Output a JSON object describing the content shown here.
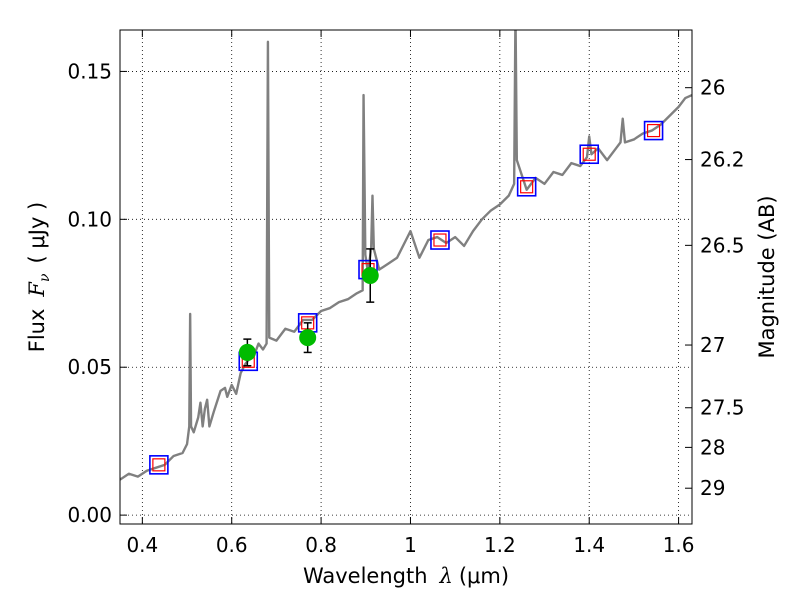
{
  "chart_data": {
    "type": "line",
    "xlabel": {
      "prefix": "Wavelength",
      "symbol": "λ",
      "unit": "(μm)"
    },
    "ylabel": {
      "prefix": "Flux",
      "symbol": "F",
      "subscript": "ν",
      "unit": "( μJy )"
    },
    "y2label": "Magnitude (AB)",
    "xlim": [
      0.35,
      1.63
    ],
    "ylim": [
      -0.003,
      0.164
    ],
    "grid": true,
    "x_ticks": [
      {
        "value": 0.4,
        "label": "0.4"
      },
      {
        "value": 0.6,
        "label": "0.6"
      },
      {
        "value": 0.8,
        "label": "0.8"
      },
      {
        "value": 1.0,
        "label": "1"
      },
      {
        "value": 1.2,
        "label": "1.2"
      },
      {
        "value": 1.4,
        "label": "1.4"
      },
      {
        "value": 1.6,
        "label": "1.6"
      }
    ],
    "y_ticks": [
      {
        "value": 0.0,
        "label": "0.00"
      },
      {
        "value": 0.05,
        "label": "0.05"
      },
      {
        "value": 0.1,
        "label": "0.10"
      },
      {
        "value": 0.15,
        "label": "0.15"
      }
    ],
    "y2_ticks": [
      {
        "flux": 0.1445,
        "label": "26"
      },
      {
        "flux": 0.1202,
        "label": "26.2"
      },
      {
        "flux": 0.0912,
        "label": "26.5"
      },
      {
        "flux": 0.0575,
        "label": "27"
      },
      {
        "flux": 0.0363,
        "label": "27.5"
      },
      {
        "flux": 0.0229,
        "label": "28"
      },
      {
        "flux": 0.0091,
        "label": "29"
      }
    ],
    "series": [
      {
        "style": "gray-line",
        "color": "#808080",
        "points": [
          [
            0.35,
            0.012
          ],
          [
            0.37,
            0.014
          ],
          [
            0.39,
            0.013
          ],
          [
            0.41,
            0.015
          ],
          [
            0.43,
            0.016
          ],
          [
            0.45,
            0.017
          ],
          [
            0.47,
            0.02
          ],
          [
            0.49,
            0.021
          ],
          [
            0.5,
            0.024
          ],
          [
            0.505,
            0.03
          ],
          [
            0.507,
            0.068
          ],
          [
            0.509,
            0.03
          ],
          [
            0.515,
            0.028
          ],
          [
            0.525,
            0.033
          ],
          [
            0.53,
            0.038
          ],
          [
            0.535,
            0.03
          ],
          [
            0.54,
            0.036
          ],
          [
            0.545,
            0.039
          ],
          [
            0.55,
            0.03
          ],
          [
            0.56,
            0.035
          ],
          [
            0.575,
            0.042
          ],
          [
            0.585,
            0.043
          ],
          [
            0.59,
            0.04
          ],
          [
            0.6,
            0.044
          ],
          [
            0.61,
            0.041
          ],
          [
            0.62,
            0.048
          ],
          [
            0.63,
            0.051
          ],
          [
            0.64,
            0.053
          ],
          [
            0.65,
            0.054
          ],
          [
            0.66,
            0.058
          ],
          [
            0.67,
            0.056
          ],
          [
            0.678,
            0.058
          ],
          [
            0.681,
            0.16
          ],
          [
            0.684,
            0.06
          ],
          [
            0.7,
            0.059
          ],
          [
            0.72,
            0.063
          ],
          [
            0.74,
            0.062
          ],
          [
            0.76,
            0.066
          ],
          [
            0.78,
            0.066
          ],
          [
            0.8,
            0.069
          ],
          [
            0.82,
            0.07
          ],
          [
            0.84,
            0.072
          ],
          [
            0.86,
            0.073
          ],
          [
            0.88,
            0.075
          ],
          [
            0.893,
            0.076
          ],
          [
            0.895,
            0.142
          ],
          [
            0.899,
            0.088
          ],
          [
            0.905,
            0.082
          ],
          [
            0.912,
            0.09
          ],
          [
            0.915,
            0.108
          ],
          [
            0.918,
            0.09
          ],
          [
            0.93,
            0.083
          ],
          [
            0.95,
            0.085
          ],
          [
            0.97,
            0.087
          ],
          [
            0.99,
            0.093
          ],
          [
            1.0,
            0.096
          ],
          [
            1.02,
            0.087
          ],
          [
            1.04,
            0.093
          ],
          [
            1.06,
            0.094
          ],
          [
            1.08,
            0.092
          ],
          [
            1.1,
            0.094
          ],
          [
            1.12,
            0.091
          ],
          [
            1.14,
            0.096
          ],
          [
            1.16,
            0.1
          ],
          [
            1.18,
            0.103
          ],
          [
            1.2,
            0.105
          ],
          [
            1.22,
            0.108
          ],
          [
            1.232,
            0.112
          ],
          [
            1.235,
            0.17
          ],
          [
            1.238,
            0.12
          ],
          [
            1.26,
            0.11
          ],
          [
            1.28,
            0.114
          ],
          [
            1.3,
            0.112
          ],
          [
            1.32,
            0.116
          ],
          [
            1.34,
            0.115
          ],
          [
            1.36,
            0.119
          ],
          [
            1.38,
            0.118
          ],
          [
            1.395,
            0.121
          ],
          [
            1.4,
            0.128
          ],
          [
            1.405,
            0.122
          ],
          [
            1.42,
            0.124
          ],
          [
            1.44,
            0.12
          ],
          [
            1.46,
            0.124
          ],
          [
            1.47,
            0.126
          ],
          [
            1.475,
            0.134
          ],
          [
            1.48,
            0.126
          ],
          [
            1.5,
            0.127
          ],
          [
            1.52,
            0.129
          ],
          [
            1.54,
            0.13
          ],
          [
            1.56,
            0.132
          ],
          [
            1.58,
            0.135
          ],
          [
            1.6,
            0.138
          ],
          [
            1.615,
            0.141
          ],
          [
            1.63,
            0.142
          ]
        ]
      },
      {
        "style": "blue-squares",
        "color": "#0000ff",
        "points": [
          [
            0.437,
            0.017
          ],
          [
            0.637,
            0.052
          ],
          [
            0.77,
            0.065
          ],
          [
            0.905,
            0.083
          ],
          [
            1.066,
            0.093
          ],
          [
            1.26,
            0.111
          ],
          [
            1.4,
            0.122
          ],
          [
            1.544,
            0.13
          ]
        ]
      },
      {
        "style": "red-squares",
        "color": "#ff0000",
        "points": [
          [
            0.437,
            0.017
          ],
          [
            0.637,
            0.052
          ],
          [
            0.77,
            0.065
          ],
          [
            0.905,
            0.083
          ],
          [
            1.066,
            0.093
          ],
          [
            1.26,
            0.111
          ],
          [
            1.4,
            0.122
          ],
          [
            1.544,
            0.13
          ]
        ]
      },
      {
        "style": "green-points",
        "color": "#00bb00",
        "points": [
          {
            "x": 0.635,
            "y": 0.055,
            "err": 0.0045
          },
          {
            "x": 0.77,
            "y": 0.06,
            "err": 0.005
          },
          {
            "x": 0.91,
            "y": 0.081,
            "err": 0.009
          }
        ]
      }
    ]
  }
}
